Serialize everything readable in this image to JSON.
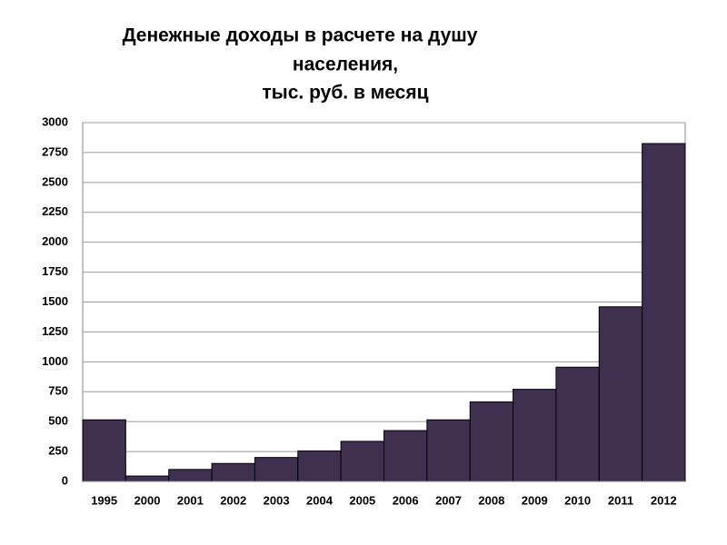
{
  "chart_data": {
    "type": "bar",
    "title": [
      "Денежные доходы в расчете на душу",
      "населения,",
      "тыс. руб. в месяц"
    ],
    "categories": [
      "1995",
      "2000",
      "2001",
      "2002",
      "2003",
      "2004",
      "2005",
      "2006",
      "2007",
      "2008",
      "2009",
      "2010",
      "2011",
      "2012"
    ],
    "values": [
      515,
      45,
      100,
      150,
      200,
      255,
      335,
      425,
      515,
      665,
      770,
      955,
      1460,
      2825
    ],
    "color": "#3f3050",
    "ylim": [
      0,
      3000
    ],
    "yticks": [
      0,
      250,
      500,
      750,
      1000,
      1250,
      1500,
      1750,
      2000,
      2250,
      2500,
      2750,
      3000
    ],
    "grid": true
  }
}
